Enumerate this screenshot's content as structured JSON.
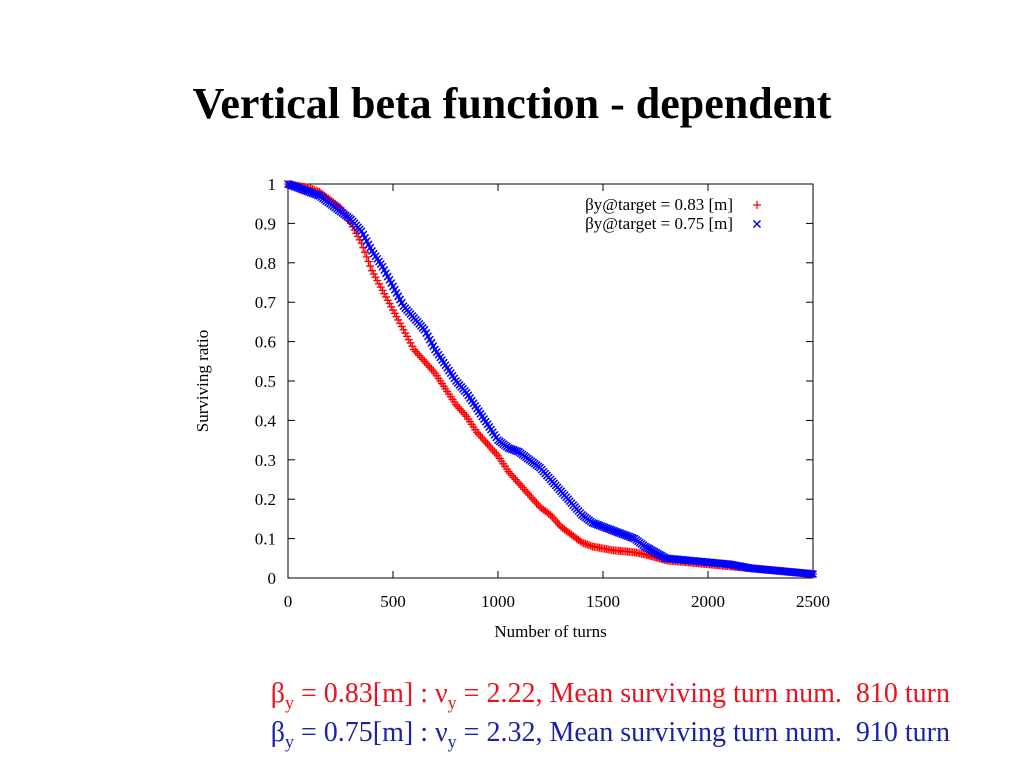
{
  "slide": {
    "title": "Vertical beta function - dependent"
  },
  "captions": [
    {
      "beta_sym": "β",
      "beta_sub": "y",
      "beta_text": " = 0.83[m] : ",
      "nu_sym": "ν",
      "nu_sub": "y",
      "rest": " = 2.22, Mean surviving turn num.",
      "turn": "810 turn",
      "color": "#e8141e"
    },
    {
      "beta_sym": "β",
      "beta_sub": "y",
      "beta_text": " = 0.75[m] : ",
      "nu_sym": "ν",
      "nu_sub": "y",
      "rest": " = 2.32, Mean surviving turn num.",
      "turn": "910 turn",
      "color": "#1c22a8"
    }
  ],
  "chart_data": {
    "type": "scatter",
    "xlabel": "Number of turns",
    "ylabel": "Surviving ratio",
    "xlim": [
      0,
      2500
    ],
    "ylim": [
      0,
      1
    ],
    "xticks": [
      "0",
      "500",
      "1000",
      "1500",
      "2000",
      "2500"
    ],
    "yticks": [
      "0",
      "0.1",
      "0.2",
      "0.3",
      "0.4",
      "0.5",
      "0.6",
      "0.7",
      "0.8",
      "0.9",
      "1"
    ],
    "grid": false,
    "legend_position": "top-right",
    "series": [
      {
        "name": "βy@target = 0.83 [m]",
        "marker": "+",
        "color": "#ff0000",
        "x": [
          0,
          100,
          150,
          200,
          250,
          300,
          350,
          400,
          450,
          500,
          550,
          600,
          650,
          700,
          750,
          800,
          850,
          900,
          950,
          1000,
          1050,
          1100,
          1150,
          1200,
          1250,
          1300,
          1350,
          1400,
          1450,
          1500,
          1550,
          1600,
          1650,
          1700,
          1800,
          1900,
          2000,
          2100,
          2200,
          2300,
          2400,
          2500
        ],
        "y": [
          1.0,
          0.99,
          0.98,
          0.96,
          0.94,
          0.9,
          0.85,
          0.78,
          0.73,
          0.68,
          0.63,
          0.58,
          0.55,
          0.52,
          0.48,
          0.44,
          0.41,
          0.37,
          0.34,
          0.31,
          0.27,
          0.24,
          0.21,
          0.18,
          0.16,
          0.13,
          0.11,
          0.09,
          0.08,
          0.075,
          0.07,
          0.068,
          0.065,
          0.06,
          0.045,
          0.04,
          0.035,
          0.03,
          0.025,
          0.02,
          0.015,
          0.01
        ]
      },
      {
        "name": "βy@target = 0.75 [m]",
        "marker": "x",
        "color": "#0000ff",
        "x": [
          0,
          100,
          150,
          200,
          250,
          300,
          350,
          400,
          450,
          500,
          550,
          600,
          650,
          700,
          750,
          800,
          850,
          900,
          950,
          1000,
          1050,
          1100,
          1150,
          1200,
          1250,
          1300,
          1350,
          1400,
          1450,
          1500,
          1550,
          1600,
          1650,
          1700,
          1800,
          1900,
          2000,
          2100,
          2200,
          2300,
          2400,
          2500
        ],
        "y": [
          1.0,
          0.98,
          0.97,
          0.95,
          0.93,
          0.91,
          0.88,
          0.83,
          0.79,
          0.74,
          0.69,
          0.66,
          0.63,
          0.58,
          0.54,
          0.5,
          0.47,
          0.43,
          0.39,
          0.35,
          0.33,
          0.32,
          0.3,
          0.28,
          0.25,
          0.22,
          0.19,
          0.16,
          0.14,
          0.13,
          0.12,
          0.11,
          0.1,
          0.08,
          0.05,
          0.045,
          0.04,
          0.035,
          0.025,
          0.02,
          0.015,
          0.01
        ]
      }
    ]
  }
}
